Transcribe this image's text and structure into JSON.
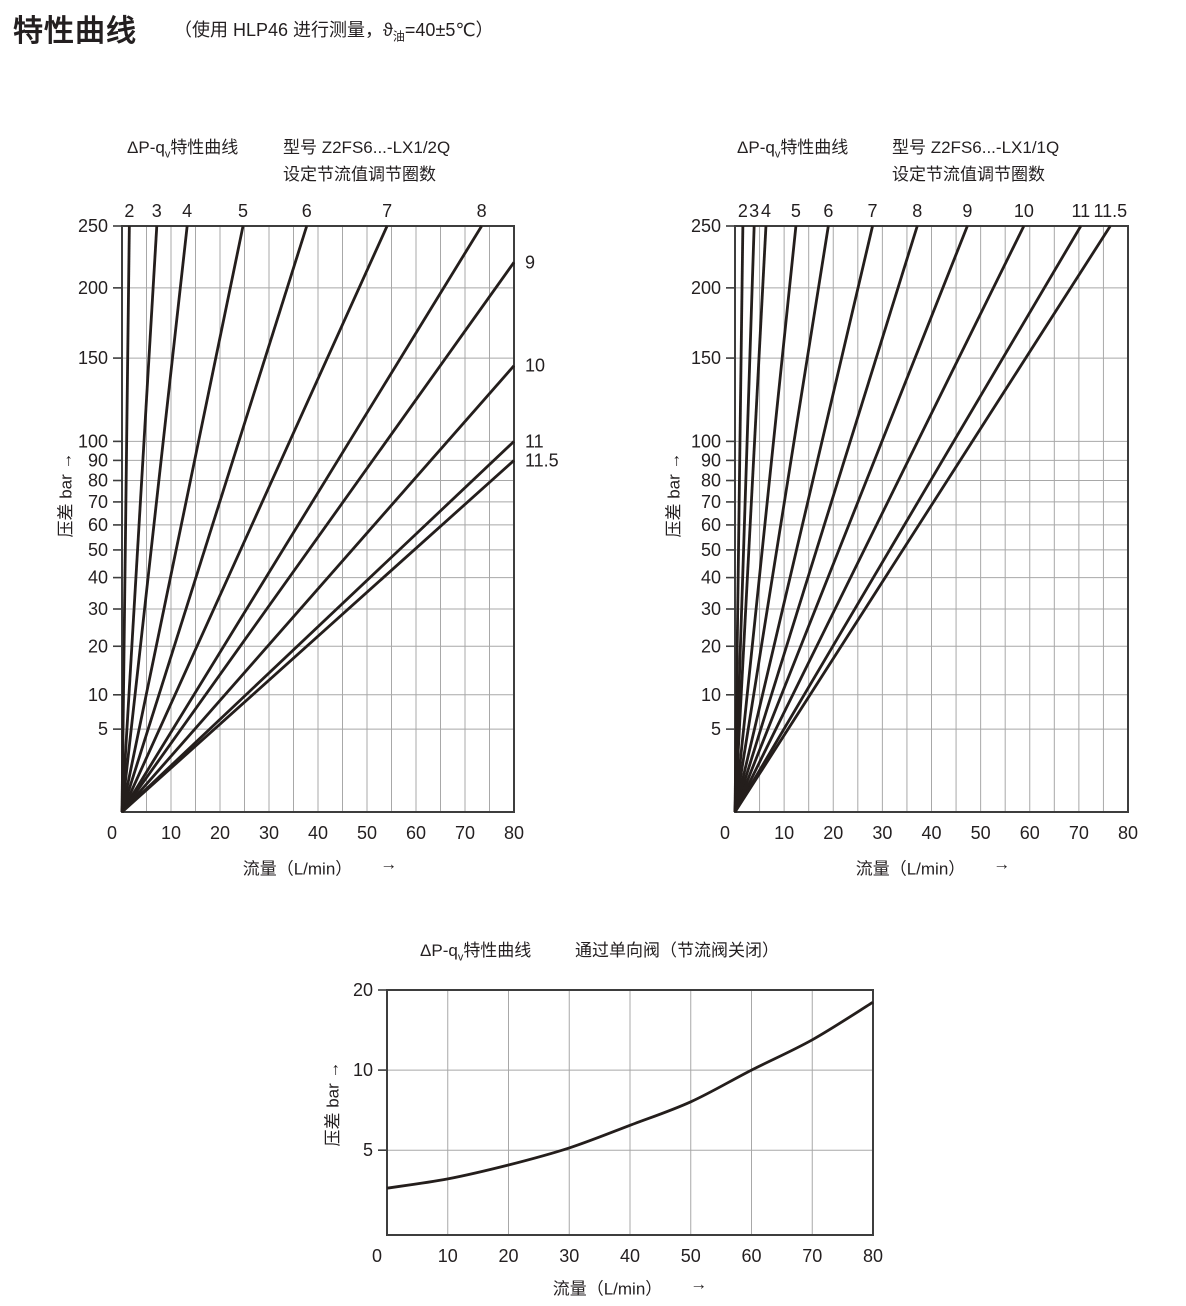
{
  "header": {
    "title": "特性曲线",
    "subtitle": {
      "prefix": "（使用 HLP46 进行测量，",
      "symbol": "ϑ",
      "sub": "油",
      "suffix": "=40±5℃）"
    }
  },
  "colors": {
    "text": "#231f20",
    "curve": "#241e1c",
    "grid": "#a8a8a8",
    "frame": "#3d3d3d",
    "background": "#ffffff"
  },
  "chart_data": [
    {
      "id": "dp-qv-2q",
      "type": "line",
      "title": "ΔP-qv特性曲线",
      "title_parts": {
        "prefix": "ΔP-q",
        "sub": "v",
        "suffix": "特性曲线"
      },
      "model": "型号 Z2FS6...-LX1/2Q",
      "model_note": "设定节流值调节圈数",
      "xlabel": "流量（L/min）",
      "xlabel_arrow": "→",
      "ylabel": "压差 bar →",
      "x_range": [
        0,
        80
      ],
      "x_ticks": [
        0,
        10,
        20,
        30,
        40,
        50,
        60,
        70,
        80
      ],
      "x_minor_step": 5,
      "y_scale": "sqrt",
      "y_range": [
        0,
        250
      ],
      "y_ticks": [
        5,
        10,
        20,
        30,
        40,
        50,
        60,
        70,
        80,
        90,
        100,
        150,
        200,
        250
      ],
      "grid": "on",
      "curve_meaning": "设定节流值调节圈数 (throttle adjustment turns), ΔP rises with q; lines from origin",
      "curves": [
        {
          "label": "2",
          "from": [
            0,
            0
          ],
          "to": [
            1.5,
            250
          ],
          "label_side": "top"
        },
        {
          "label": "3",
          "from": [
            0,
            0
          ],
          "to": [
            7.1,
            250
          ],
          "label_side": "top"
        },
        {
          "label": "4",
          "from": [
            0,
            0
          ],
          "to": [
            13.3,
            250
          ],
          "label_side": "top"
        },
        {
          "label": "5",
          "from": [
            0,
            0
          ],
          "to": [
            24.7,
            250
          ],
          "label_side": "top"
        },
        {
          "label": "6",
          "from": [
            0,
            0
          ],
          "to": [
            37.7,
            250
          ],
          "label_side": "top"
        },
        {
          "label": "7",
          "from": [
            0,
            0
          ],
          "to": [
            54.1,
            250
          ],
          "label_side": "top"
        },
        {
          "label": "8",
          "from": [
            0,
            0
          ],
          "to": [
            73.4,
            250
          ],
          "label_side": "top"
        },
        {
          "label": "9",
          "from": [
            0,
            0
          ],
          "to": [
            80,
            220
          ],
          "label_side": "right"
        },
        {
          "label": "10",
          "from": [
            0,
            0
          ],
          "to": [
            80,
            145
          ],
          "label_side": "right"
        },
        {
          "label": "11",
          "from": [
            0,
            0
          ],
          "to": [
            80,
            100
          ],
          "label_side": "right"
        },
        {
          "label": "11.5",
          "from": [
            0,
            0
          ],
          "to": [
            80,
            90
          ],
          "label_side": "right"
        }
      ]
    },
    {
      "id": "dp-qv-1q",
      "type": "line",
      "title": "ΔP-qv特性曲线",
      "title_parts": {
        "prefix": "ΔP-q",
        "sub": "v",
        "suffix": "特性曲线"
      },
      "model": "型号 Z2FS6...-LX1/1Q",
      "model_note": "设定节流值调节圈数",
      "xlabel": "流量（L/min）",
      "xlabel_arrow": "→",
      "ylabel": "压差 bar →",
      "x_range": [
        0,
        80
      ],
      "x_ticks": [
        0,
        10,
        20,
        30,
        40,
        50,
        60,
        70,
        80
      ],
      "x_minor_step": 5,
      "y_scale": "sqrt",
      "y_range": [
        0,
        250
      ],
      "y_ticks": [
        5,
        10,
        20,
        30,
        40,
        50,
        60,
        70,
        80,
        90,
        100,
        150,
        200,
        250
      ],
      "grid": "on",
      "curve_meaning": "设定节流值调节圈数 (throttle adjustment turns), ΔP rises with q; lines from origin",
      "curves": [
        {
          "label": "2",
          "from": [
            0,
            0
          ],
          "to": [
            1.6,
            250
          ],
          "label_side": "top"
        },
        {
          "label": "3",
          "from": [
            0,
            0
          ],
          "to": [
            3.9,
            250
          ],
          "label_side": "top"
        },
        {
          "label": "4",
          "from": [
            0,
            0
          ],
          "to": [
            6.3,
            250
          ],
          "label_side": "top"
        },
        {
          "label": "5",
          "from": [
            0,
            0
          ],
          "to": [
            12.4,
            250
          ],
          "label_side": "top"
        },
        {
          "label": "6",
          "from": [
            0,
            0
          ],
          "to": [
            19.0,
            250
          ],
          "label_side": "top"
        },
        {
          "label": "7",
          "from": [
            0,
            0
          ],
          "to": [
            28.0,
            250
          ],
          "label_side": "top"
        },
        {
          "label": "8",
          "from": [
            0,
            0
          ],
          "to": [
            37.1,
            250
          ],
          "label_side": "top"
        },
        {
          "label": "9",
          "from": [
            0,
            0
          ],
          "to": [
            47.3,
            250
          ],
          "label_side": "top"
        },
        {
          "label": "10",
          "from": [
            0,
            0
          ],
          "to": [
            58.8,
            250
          ],
          "label_side": "top"
        },
        {
          "label": "11",
          "from": [
            0,
            0
          ],
          "to": [
            70.4,
            250
          ],
          "label_side": "top"
        },
        {
          "label": "11.5",
          "from": [
            0,
            0
          ],
          "to": [
            76.4,
            250
          ],
          "label_side": "top"
        }
      ]
    },
    {
      "id": "dp-qv-check-valve",
      "type": "line",
      "title": "ΔP-qv特性曲线",
      "title_parts": {
        "prefix": "ΔP-q",
        "sub": "v",
        "suffix": "特性曲线"
      },
      "subtitle": "通过单向阀（节流阀关闭）",
      "xlabel": "流量（L/min）",
      "xlabel_arrow": "→",
      "ylabel": "压差 bar →",
      "x_range": [
        0,
        80
      ],
      "x_ticks": [
        0,
        10,
        20,
        30,
        40,
        50,
        60,
        70,
        80
      ],
      "x_minor_step": null,
      "y_scale": "log",
      "y_range": [
        2.4,
        20
      ],
      "y_ticks": [
        5,
        10,
        20
      ],
      "grid": "on",
      "points": [
        [
          0,
          3.6
        ],
        [
          10,
          3.9
        ],
        [
          20,
          4.4
        ],
        [
          30,
          5.1
        ],
        [
          40,
          6.2
        ],
        [
          50,
          7.6
        ],
        [
          60,
          10
        ],
        [
          70,
          13
        ],
        [
          80,
          18
        ]
      ]
    }
  ]
}
